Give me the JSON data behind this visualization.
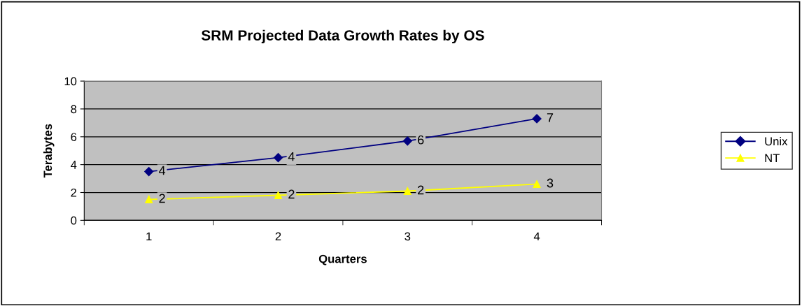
{
  "chart_data": {
    "type": "line",
    "title": "SRM Projected Data Growth Rates by OS",
    "xlabel": "Quarters",
    "ylabel": "Terabytes",
    "categories": [
      "1",
      "2",
      "3",
      "4"
    ],
    "series": [
      {
        "name": "Unix",
        "color": "#000080",
        "marker": "diamond",
        "values": [
          3.5,
          4.5,
          5.7,
          7.3
        ],
        "value_labels": [
          "4",
          "4",
          "6",
          "7"
        ]
      },
      {
        "name": "NT",
        "color": "#ffff00",
        "marker": "triangle",
        "values": [
          1.5,
          1.8,
          2.1,
          2.6
        ],
        "value_labels": [
          "2",
          "2",
          "2",
          "3"
        ]
      }
    ],
    "ylim": [
      0,
      10
    ],
    "yticks": [
      0,
      2,
      4,
      6,
      8,
      10
    ],
    "grid": "y",
    "legend": "right",
    "line_style": "solid"
  }
}
